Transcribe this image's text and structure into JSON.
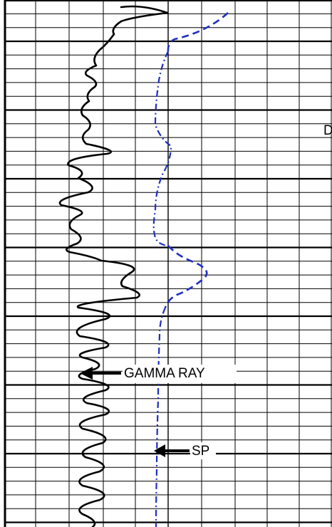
{
  "labels": {
    "gamma_ray": "GAMMA RAY",
    "sp": "SP",
    "edge": "D"
  }
}
